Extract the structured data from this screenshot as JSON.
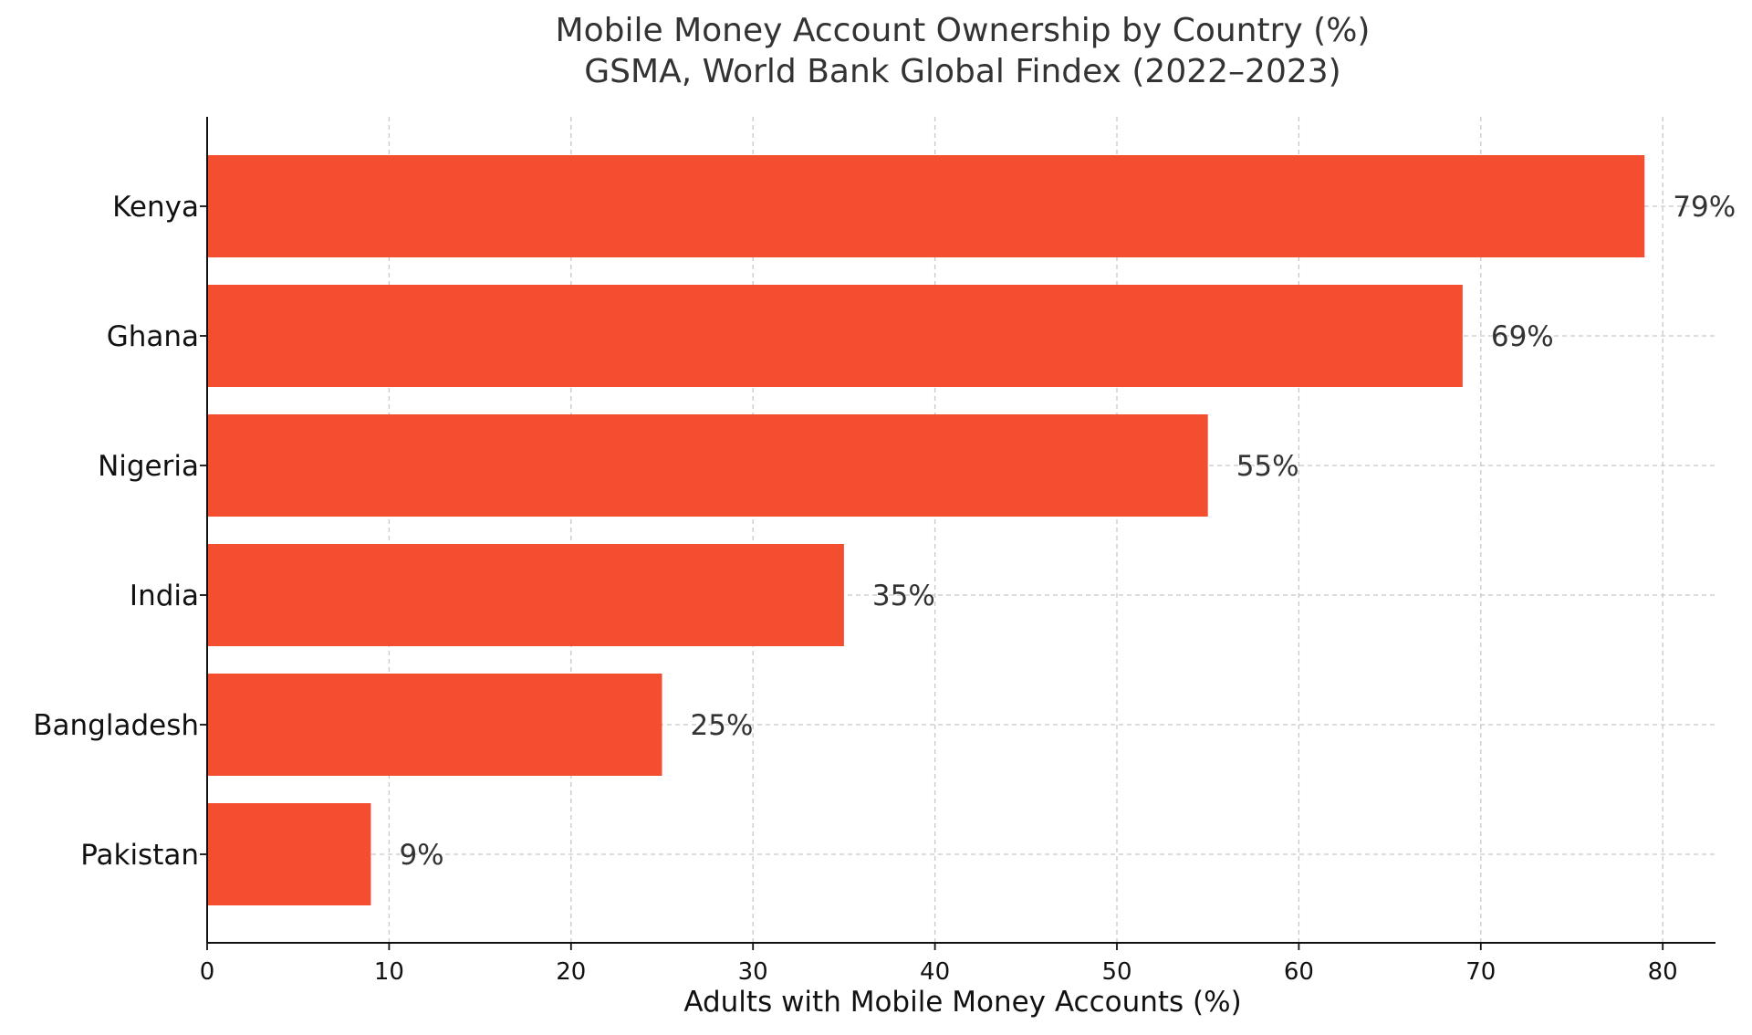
{
  "chart_data": {
    "type": "bar",
    "orientation": "horizontal",
    "title": "Mobile Money Account Ownership by Country (%)",
    "subtitle": "GSMA, World Bank Global Findex (2022–2023)",
    "xlabel": "Adults with Mobile Money Accounts (%)",
    "ylabel": "",
    "categories": [
      "Kenya",
      "Ghana",
      "Nigeria",
      "India",
      "Bangladesh",
      "Pakistan"
    ],
    "values": [
      79,
      69,
      55,
      35,
      25,
      9
    ],
    "data_labels": [
      "79%",
      "69%",
      "55%",
      "35%",
      "25%",
      "9%"
    ],
    "xlim": [
      0,
      83
    ],
    "xticks": [
      0,
      10,
      20,
      30,
      40,
      50,
      60,
      70,
      80
    ],
    "grid": true,
    "bar_color": "#f24e2f",
    "text_color": "#333333",
    "grid_color": "#c8c8c8"
  }
}
